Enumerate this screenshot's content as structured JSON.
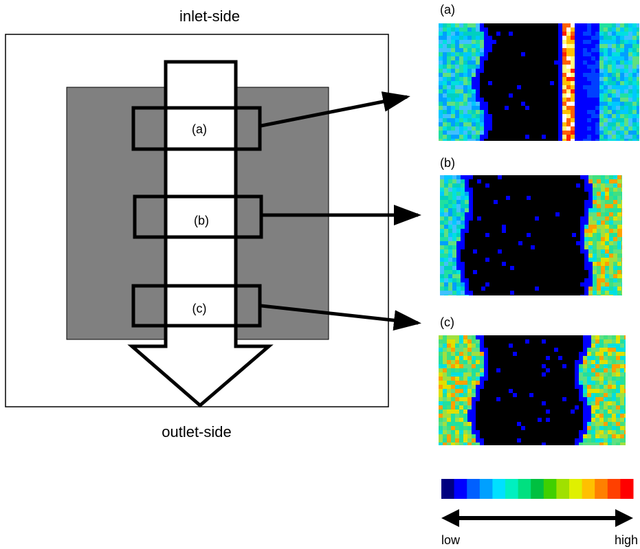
{
  "diagram": {
    "top_label": "inlet-side",
    "bottom_label": "outlet-side",
    "regions": [
      {
        "label": "(a)"
      },
      {
        "label": "(b)"
      },
      {
        "label": "(c)"
      }
    ]
  },
  "panels": [
    {
      "label": "(a)"
    },
    {
      "label": "(b)"
    },
    {
      "label": "(c)"
    }
  ],
  "color_scale": {
    "low_label": "low",
    "high_label": "high"
  }
}
